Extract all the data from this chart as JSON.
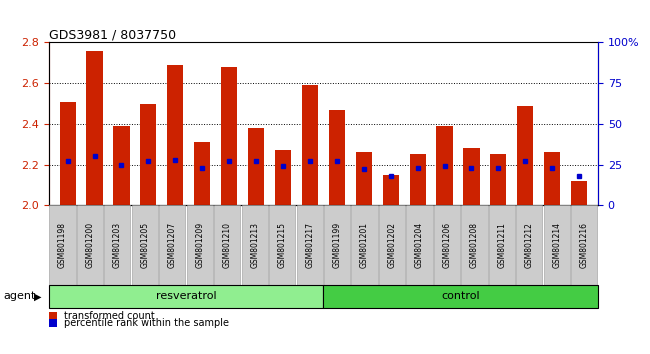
{
  "title": "GDS3981 / 8037750",
  "samples": [
    "GSM801198",
    "GSM801200",
    "GSM801203",
    "GSM801205",
    "GSM801207",
    "GSM801209",
    "GSM801210",
    "GSM801213",
    "GSM801215",
    "GSM801217",
    "GSM801199",
    "GSM801201",
    "GSM801202",
    "GSM801204",
    "GSM801206",
    "GSM801208",
    "GSM801211",
    "GSM801212",
    "GSM801214",
    "GSM801216"
  ],
  "transformed_count": [
    2.51,
    2.76,
    2.39,
    2.5,
    2.69,
    2.31,
    2.68,
    2.38,
    2.27,
    2.59,
    2.47,
    2.26,
    2.15,
    2.25,
    2.39,
    2.28,
    2.25,
    2.49,
    2.26,
    2.12
  ],
  "percentile_rank": [
    27,
    30,
    25,
    27,
    28,
    23,
    27,
    27,
    24,
    27,
    27,
    22,
    18,
    23,
    24,
    23,
    23,
    27,
    23,
    18
  ],
  "resveratrol_count": 10,
  "control_count": 10,
  "ylim_left": [
    2.0,
    2.8
  ],
  "ylim_right": [
    0,
    100
  ],
  "yticks_left": [
    2.0,
    2.2,
    2.4,
    2.6,
    2.8
  ],
  "yticks_right": [
    0,
    25,
    50,
    75,
    100
  ],
  "ytick_labels_right": [
    "0",
    "25",
    "50",
    "75",
    "100%"
  ],
  "bar_color": "#cc2200",
  "percentile_color": "#0000cc",
  "group_resv_color": "#90ee90",
  "group_ctrl_color": "#44cc44",
  "tick_bg_color": "#cccccc",
  "figsize": [
    6.5,
    3.54
  ],
  "dpi": 100
}
